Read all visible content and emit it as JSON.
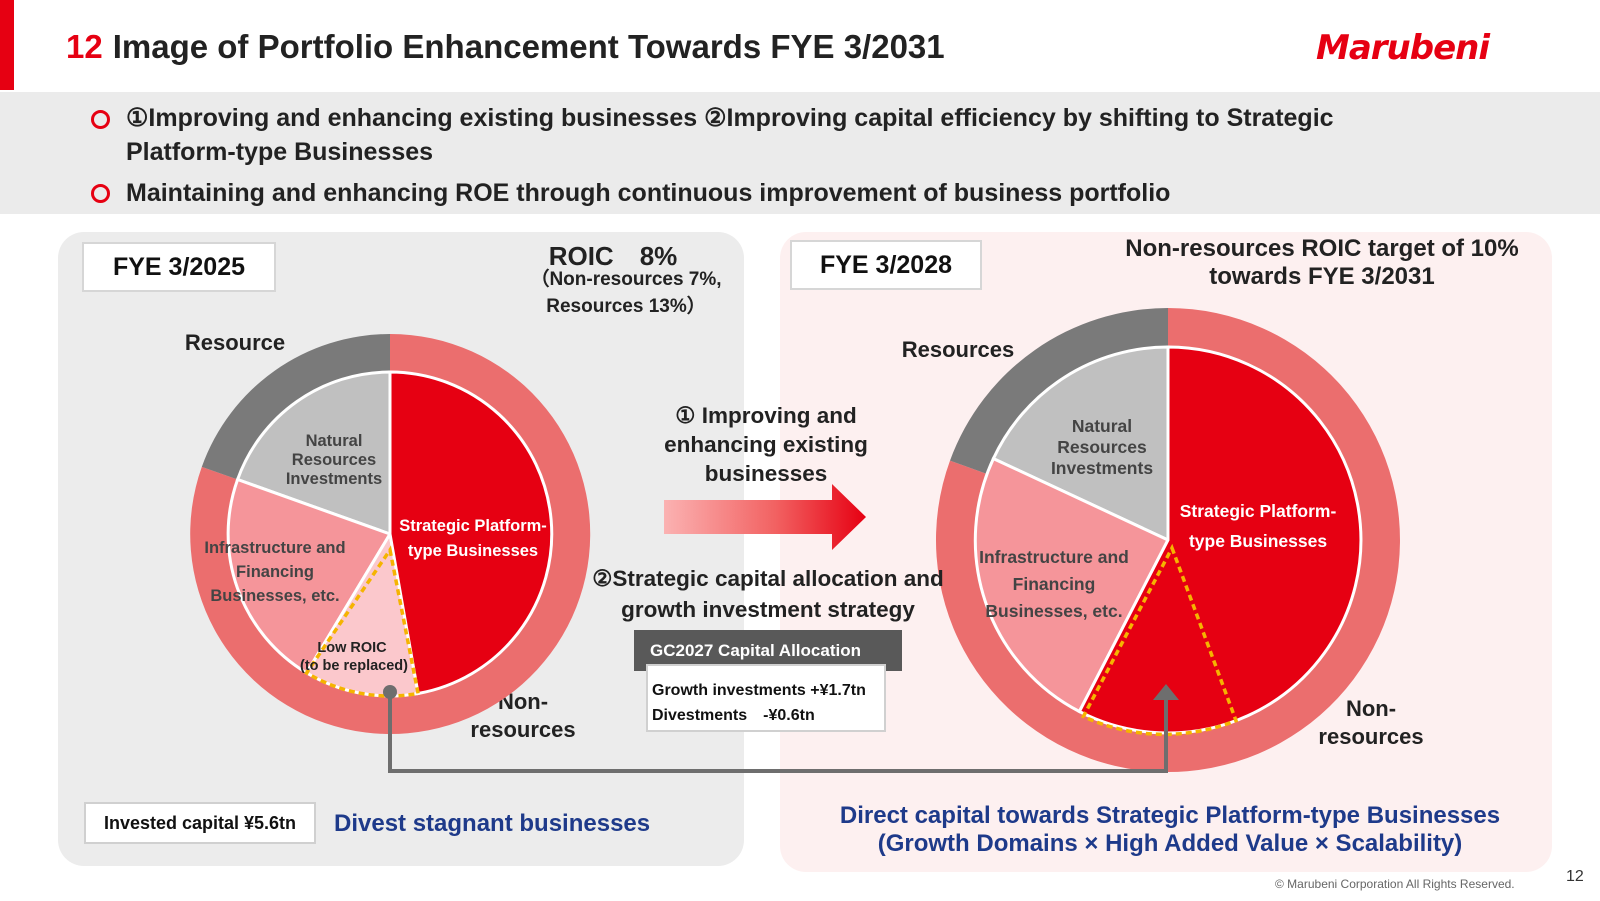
{
  "header": {
    "number": "12",
    "title": "Image of Portfolio Enhancement Towards FYE 3/2031",
    "logo": "Marubeni"
  },
  "bullets": [
    {
      "line1": "①Improving and enhancing existing businesses ②Improving capital efficiency by shifting to Strategic",
      "line2": "Platform-type Businesses"
    },
    {
      "line1": "Maintaining and enhancing ROE through continuous improvement of business portfolio"
    }
  ],
  "left": {
    "fye": "FYE 3/2025",
    "roic": "ROIC　8%",
    "roic_sub1": "（Non-resources 7%,",
    "roic_sub2": "Resources 13%）",
    "outer_resource": "Resource",
    "outer_nonres1": "Non-",
    "outer_nonres2": "resources",
    "seg_natural": [
      "Natural",
      "Resources",
      "Investments"
    ],
    "seg_strategic": [
      "Strategic Platform-",
      "type Businesses"
    ],
    "seg_infra": [
      "Infrastructure and",
      "Financing",
      "Businesses, etc."
    ],
    "seg_low": [
      "Low ROIC",
      "(to be replaced)"
    ],
    "invested": "Invested  capital ¥5.6tn",
    "divest": "Divest stagnant businesses"
  },
  "middle": {
    "step1": [
      "① Improving and",
      "enhancing existing",
      "businesses"
    ],
    "step2": [
      "②Strategic capital allocation and",
      "growth investment strategy"
    ],
    "alloc_title": "GC2027 Capital Allocation",
    "alloc_growth": "Growth investments +¥1.7tn",
    "alloc_divest": "Divestments　-¥0.6tn"
  },
  "right": {
    "fye": "FYE 3/2028",
    "target1": "Non-resources ROIC target of 10%",
    "target2": "towards FYE 3/2031",
    "outer_resource": "Resources",
    "outer_nonres1": "Non-",
    "outer_nonres2": "resources",
    "seg_natural": [
      "Natural",
      "Resources",
      "Investments"
    ],
    "seg_strategic": [
      "Strategic Platform-",
      "type Businesses"
    ],
    "seg_infra": [
      "Infrastructure and",
      "Financing",
      "Businesses, etc."
    ],
    "direct1": "Direct capital towards Strategic Platform-type Businesses",
    "direct2": "(Growth Domains × High Added Value × Scalability)"
  },
  "footer": {
    "copyright": "© Marubeni Corporation All Rights Reserved.",
    "page": "12"
  },
  "colors": {
    "brand_red": "#e60012",
    "outer_ring": "#eb6e6e",
    "resource_dark": "#7a7a7a",
    "natural_gray": "#c0c0c0",
    "infra_pink": "#f5959a",
    "low_roic_pink": "#fbc8cc",
    "highlight_dash": "#f5b400",
    "text_blue": "#1e3a8a"
  }
}
